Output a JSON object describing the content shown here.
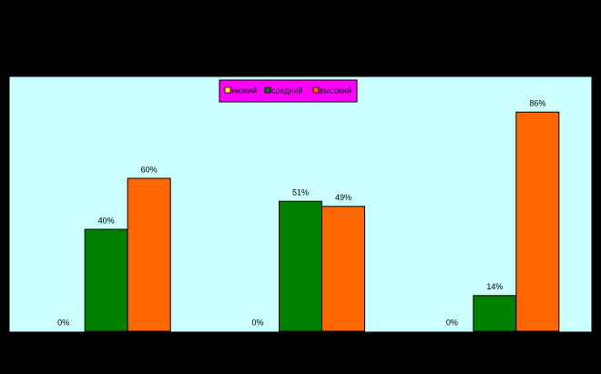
{
  "chart_data": {
    "type": "bar",
    "categories": [
      null,
      null,
      null
    ],
    "series": [
      {
        "name": "низкий",
        "color": "#ffff00",
        "values": [
          0,
          0,
          0
        ],
        "value_labels": [
          "0%",
          "0%",
          "0%"
        ]
      },
      {
        "name": "средний",
        "color": "#008000",
        "values": [
          40,
          51,
          14
        ],
        "value_labels": [
          "40%",
          "51%",
          "14%"
        ]
      },
      {
        "name": "высокий",
        "color": "#ff6600",
        "values": [
          60,
          49,
          86
        ],
        "value_labels": [
          "60%",
          "49%",
          "86%"
        ]
      }
    ],
    "ylim": [
      0,
      100
    ],
    "background": "#ccffff",
    "legend_color": "#ff00ff",
    "legend": "top"
  }
}
